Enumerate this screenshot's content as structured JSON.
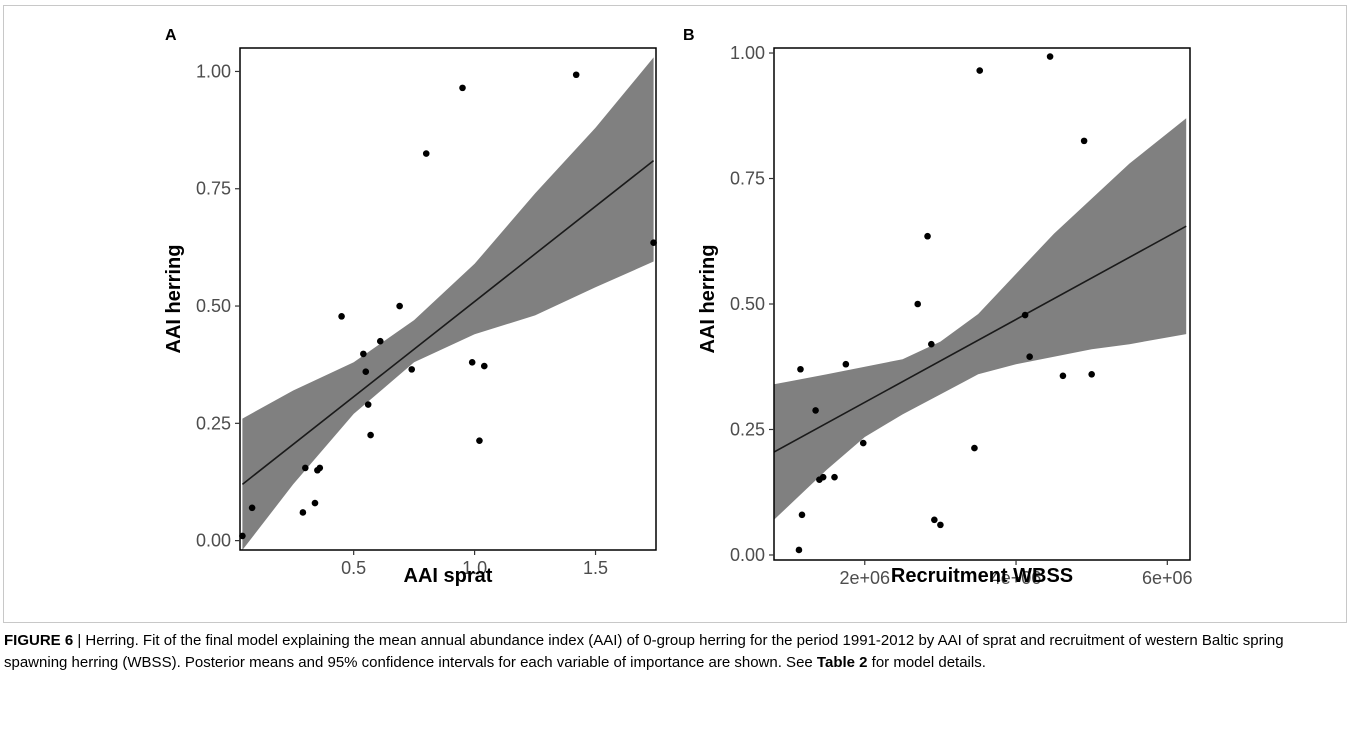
{
  "chart_data": [
    {
      "type": "scatter",
      "panel_label": "A",
      "xlabel": "AAI sprat",
      "ylabel": "AAI herring",
      "xlim": [
        0.03,
        1.75
      ],
      "ylim": [
        -0.02,
        1.05
      ],
      "xticks": [
        0.5,
        1.0,
        1.5
      ],
      "xtick_labels": [
        "0.5",
        "1.0",
        "1.5"
      ],
      "yticks": [
        0.0,
        0.25,
        0.5,
        0.75,
        1.0
      ],
      "ytick_labels": [
        "0.00",
        "0.25",
        "0.50",
        "0.75",
        "1.00"
      ],
      "grid": false,
      "fit_line": {
        "x": [
          0.04,
          1.74
        ],
        "y": [
          0.12,
          0.81
        ]
      },
      "confidence_band": {
        "x": [
          0.04,
          0.25,
          0.5,
          0.75,
          1.0,
          1.25,
          1.5,
          1.74
        ],
        "lower": [
          -0.02,
          0.12,
          0.27,
          0.38,
          0.44,
          0.48,
          0.54,
          0.595
        ],
        "upper": [
          0.26,
          0.32,
          0.38,
          0.47,
          0.59,
          0.74,
          0.88,
          1.03
        ]
      },
      "points": {
        "x": [
          0.04,
          0.08,
          0.29,
          0.3,
          0.34,
          0.35,
          0.36,
          0.45,
          0.54,
          0.55,
          0.56,
          0.57,
          0.61,
          0.69,
          0.74,
          0.8,
          0.95,
          0.99,
          1.02,
          1.04,
          1.42,
          1.74
        ],
        "y": [
          0.01,
          0.07,
          0.06,
          0.155,
          0.08,
          0.15,
          0.155,
          0.478,
          0.398,
          0.36,
          0.29,
          0.225,
          0.425,
          0.5,
          0.365,
          0.825,
          0.965,
          0.38,
          0.213,
          0.372,
          0.993,
          0.635
        ]
      }
    },
    {
      "type": "scatter",
      "panel_label": "B",
      "xlabel": "Recruitment WBSS",
      "ylabel": "AAI herring",
      "xlim": [
        800000,
        6300000
      ],
      "ylim": [
        -0.01,
        1.01
      ],
      "xticks": [
        2000000,
        4000000,
        6000000
      ],
      "xtick_labels": [
        "2e+06",
        "4e+06",
        "6e+06"
      ],
      "yticks": [
        0.0,
        0.25,
        0.5,
        0.75,
        1.0
      ],
      "ytick_labels": [
        "0.00",
        "0.25",
        "0.50",
        "0.75",
        "1.00"
      ],
      "grid": false,
      "fit_line": {
        "x": [
          800000,
          6250000
        ],
        "y": [
          0.205,
          0.655
        ]
      },
      "confidence_band": {
        "x": [
          800000,
          1500000,
          2000000,
          2500000,
          3000000,
          3500000,
          4000000,
          4500000,
          5000000,
          5500000,
          6250000
        ],
        "lower": [
          0.07,
          0.17,
          0.235,
          0.28,
          0.32,
          0.36,
          0.38,
          0.395,
          0.41,
          0.42,
          0.44
        ],
        "upper": [
          0.34,
          0.36,
          0.375,
          0.39,
          0.425,
          0.48,
          0.56,
          0.64,
          0.71,
          0.78,
          0.87
        ]
      },
      "points": {
        "x": [
          1130000,
          1150000,
          1170000,
          1350000,
          1400000,
          1450000,
          1600000,
          1750000,
          1980000,
          2700000,
          2830000,
          2880000,
          2920000,
          3000000,
          3450000,
          3520000,
          4120000,
          4180000,
          4450000,
          4620000,
          4900000,
          5000000
        ],
        "y": [
          0.01,
          0.37,
          0.08,
          0.288,
          0.15,
          0.155,
          0.155,
          0.38,
          0.223,
          0.5,
          0.635,
          0.42,
          0.07,
          0.06,
          0.213,
          0.965,
          0.478,
          0.395,
          0.993,
          0.357,
          0.825,
          0.36
        ]
      }
    }
  ],
  "caption": {
    "figure_label": "FIGURE 6",
    "text_1": " | Herring. Fit of the final model explaining the mean annual abundance index (AAI) of 0-group herring for the period 1991-2012 by AAI of sprat and recruitment of western Baltic spring spawning herring (WBSS). Posterior means and 95% confidence intervals for each variable of importance are shown. See ",
    "table_ref": "Table 2",
    "text_2": " for model details."
  },
  "colors": {
    "ribbon": "#808080",
    "line": "#1a1a1a",
    "point": "#000000",
    "panel_border": "#000000",
    "tick_text": "#4d4d4d"
  }
}
